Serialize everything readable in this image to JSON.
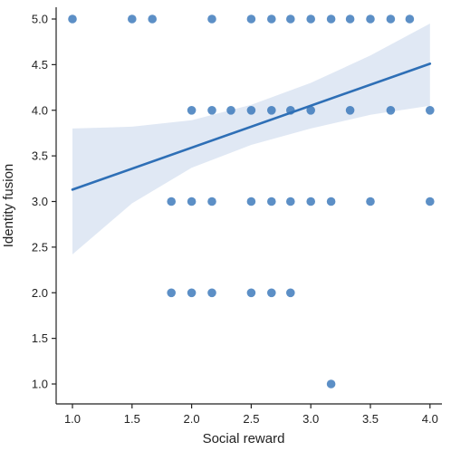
{
  "chart_data": {
    "type": "scatter",
    "xlabel": "Social reward",
    "ylabel": "Identity fusion",
    "xlim": [
      0.85,
      4.08
    ],
    "ylim": [
      0.8,
      5.15
    ],
    "xticks": [
      "1.0",
      "1.5",
      "2.0",
      "2.5",
      "3.0",
      "3.5",
      "4.0"
    ],
    "yticks": [
      "1.0",
      "1.5",
      "2.0",
      "2.5",
      "3.0",
      "3.5",
      "4.0",
      "4.5",
      "5.0"
    ],
    "grid": false,
    "legend": "none",
    "point_color": "#2e6fb6",
    "point_opacity": 0.78,
    "line_color": "#2e6fb6",
    "band_color": "#cfdcee",
    "points": [
      [
        1.0,
        5.0
      ],
      [
        1.5,
        5.0
      ],
      [
        1.67,
        5.0
      ],
      [
        2.17,
        5.0
      ],
      [
        2.5,
        5.0
      ],
      [
        2.67,
        5.0
      ],
      [
        2.83,
        5.0
      ],
      [
        3.0,
        5.0
      ],
      [
        3.17,
        5.0
      ],
      [
        3.33,
        5.0
      ],
      [
        3.5,
        5.0
      ],
      [
        3.67,
        5.0
      ],
      [
        3.83,
        5.0
      ],
      [
        2.0,
        4.0
      ],
      [
        2.17,
        4.0
      ],
      [
        2.33,
        4.0
      ],
      [
        2.5,
        4.0
      ],
      [
        2.67,
        4.0
      ],
      [
        2.83,
        4.0
      ],
      [
        3.0,
        4.0
      ],
      [
        3.33,
        4.0
      ],
      [
        3.67,
        4.0
      ],
      [
        4.0,
        4.0
      ],
      [
        1.83,
        3.0
      ],
      [
        2.0,
        3.0
      ],
      [
        2.17,
        3.0
      ],
      [
        2.5,
        3.0
      ],
      [
        2.67,
        3.0
      ],
      [
        2.83,
        3.0
      ],
      [
        3.0,
        3.0
      ],
      [
        3.17,
        3.0
      ],
      [
        3.5,
        3.0
      ],
      [
        4.0,
        3.0
      ],
      [
        1.83,
        2.0
      ],
      [
        2.0,
        2.0
      ],
      [
        2.17,
        2.0
      ],
      [
        2.5,
        2.0
      ],
      [
        2.67,
        2.0
      ],
      [
        2.83,
        2.0
      ],
      [
        3.17,
        1.0
      ]
    ],
    "regression": {
      "x": [
        1.0,
        4.0
      ],
      "y": [
        3.13,
        4.51
      ]
    },
    "confidence_band": {
      "x": [
        1.0,
        1.5,
        2.0,
        2.5,
        3.0,
        3.5,
        4.0
      ],
      "lower": [
        2.42,
        2.98,
        3.37,
        3.62,
        3.8,
        3.95,
        4.05
      ],
      "upper": [
        3.8,
        3.82,
        3.89,
        4.06,
        4.3,
        4.6,
        4.95
      ]
    }
  }
}
